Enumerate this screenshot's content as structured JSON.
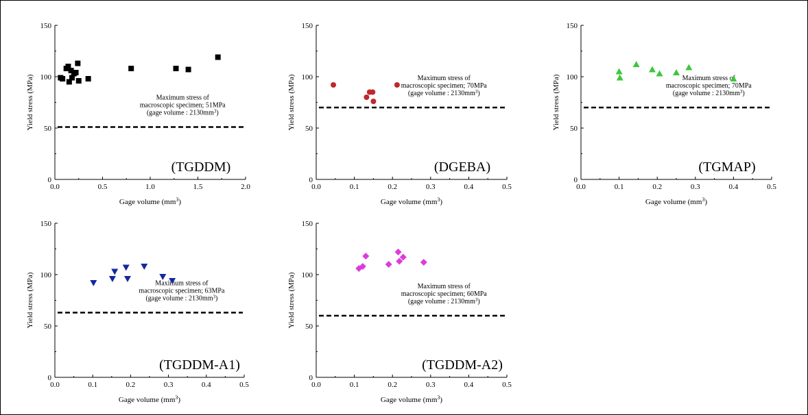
{
  "chart_data": [
    {
      "type": "scatter",
      "name_label": "(TGDDM)",
      "xlabel": "Gage volume (mm",
      "xlabel_sup": "3",
      "xlabel_end": ")",
      "ylabel": "Yield stress (MPa)",
      "xlim": [
        0,
        2.0
      ],
      "ylim": [
        0,
        150
      ],
      "xticks": [
        "0.0",
        "0.5",
        "1.0",
        "1.5",
        "2.0"
      ],
      "xtick_values": [
        0,
        0.5,
        1.0,
        1.5,
        2.0
      ],
      "yticks": [
        "0",
        "50",
        "100",
        "150"
      ],
      "ytick_values": [
        0,
        50,
        100,
        150
      ],
      "marker": "square",
      "color": "#000000",
      "reference_line": 51,
      "note_lines": [
        "Maximum stress of",
        "macroscopic specimen; 51MPa",
        "(gage volume : 2130mm",
        "3",
        ")"
      ],
      "points": [
        [
          0.06,
          99
        ],
        [
          0.08,
          98
        ],
        [
          0.12,
          108
        ],
        [
          0.14,
          110
        ],
        [
          0.15,
          95
        ],
        [
          0.17,
          106
        ],
        [
          0.18,
          99
        ],
        [
          0.2,
          103
        ],
        [
          0.22,
          104
        ],
        [
          0.24,
          113
        ],
        [
          0.25,
          96
        ],
        [
          0.35,
          98
        ],
        [
          0.8,
          108
        ],
        [
          1.27,
          108
        ],
        [
          1.4,
          107
        ],
        [
          1.71,
          119
        ]
      ]
    },
    {
      "type": "scatter",
      "name_label": "(DGEBA)",
      "xlabel": "Gage volume (mm",
      "xlabel_sup": "3",
      "xlabel_end": ")",
      "ylabel": "Yield stress (MPa)",
      "xlim": [
        0,
        0.5
      ],
      "ylim": [
        0,
        150
      ],
      "xticks": [
        "0.0",
        "0.1",
        "0.2",
        "0.3",
        "0.4",
        "0.5"
      ],
      "xtick_values": [
        0,
        0.1,
        0.2,
        0.3,
        0.4,
        0.5
      ],
      "yticks": [
        "0",
        "50",
        "100",
        "150"
      ],
      "ytick_values": [
        0,
        50,
        100,
        150
      ],
      "marker": "circle",
      "color": "#c0282d",
      "reference_line": 70,
      "note_lines": [
        "Maximum stress of",
        "macroscopic specimen; 70MPa",
        "(gage volume : 2130mm",
        "3",
        ")"
      ],
      "points": [
        [
          0.045,
          92
        ],
        [
          0.132,
          80
        ],
        [
          0.14,
          85
        ],
        [
          0.148,
          85
        ],
        [
          0.15,
          76
        ],
        [
          0.212,
          92
        ]
      ]
    },
    {
      "type": "scatter",
      "name_label": "(TGMAP)",
      "xlabel": "Gage volume (mm",
      "xlabel_sup": "3",
      "xlabel_end": ")",
      "ylabel": "Yield stress (MPa)",
      "xlim": [
        0,
        0.5
      ],
      "ylim": [
        0,
        150
      ],
      "xticks": [
        "0.0",
        "0.1",
        "0.2",
        "0.3",
        "0.4",
        "0.5"
      ],
      "xtick_values": [
        0,
        0.1,
        0.2,
        0.3,
        0.4,
        0.5
      ],
      "yticks": [
        "0",
        "50",
        "100",
        "150"
      ],
      "ytick_values": [
        0,
        50,
        100,
        150
      ],
      "marker": "triangle-up",
      "color": "#3cc83c",
      "reference_line": 70,
      "note_lines": [
        "Maximum stress of",
        "macroscopic specimen; 70MPa",
        "(gage volume : 2130mm",
        "3",
        ")"
      ],
      "points": [
        [
          0.1,
          105
        ],
        [
          0.102,
          99
        ],
        [
          0.145,
          112
        ],
        [
          0.187,
          107
        ],
        [
          0.206,
          103
        ],
        [
          0.25,
          104
        ],
        [
          0.283,
          109
        ],
        [
          0.4,
          98
        ]
      ]
    },
    {
      "type": "scatter",
      "name_label": "(TGDDM-A1)",
      "xlabel": "Gage volume (mm",
      "xlabel_sup": "3",
      "xlabel_end": ")",
      "ylabel": "Yield stress (MPa)",
      "xlim": [
        0,
        0.5
      ],
      "ylim": [
        0,
        150
      ],
      "xticks": [
        "0.0",
        "0.1",
        "0.2",
        "0.3",
        "0.4",
        "0.5"
      ],
      "xtick_values": [
        0,
        0.1,
        0.2,
        0.3,
        0.4,
        0.5
      ],
      "yticks": [
        "0",
        "50",
        "100",
        "150"
      ],
      "ytick_values": [
        0,
        50,
        100,
        150
      ],
      "marker": "triangle-down",
      "color": "#1428a0",
      "reference_line": 63,
      "note_lines": [
        "Maximum stress of",
        "macroscopic specimen; 63MPa",
        "(gage volume : 2130mm",
        "3",
        ")"
      ],
      "points": [
        [
          0.102,
          92
        ],
        [
          0.152,
          96
        ],
        [
          0.158,
          103
        ],
        [
          0.188,
          107
        ],
        [
          0.192,
          96
        ],
        [
          0.236,
          108
        ],
        [
          0.285,
          98
        ],
        [
          0.31,
          94
        ]
      ]
    },
    {
      "type": "scatter",
      "name_label": "(TGDDM-A2)",
      "xlabel": "Gage volume (mm",
      "xlabel_sup": "3",
      "xlabel_end": ")",
      "ylabel": "Yield stress (MPa)",
      "xlim": [
        0,
        0.5
      ],
      "ylim": [
        0,
        150
      ],
      "xticks": [
        "0.0",
        "0.1",
        "0.2",
        "0.3",
        "0.4",
        "0.5"
      ],
      "xtick_values": [
        0,
        0.1,
        0.2,
        0.3,
        0.4,
        0.5
      ],
      "yticks": [
        "0",
        "50",
        "100",
        "150"
      ],
      "ytick_values": [
        0,
        50,
        100,
        150
      ],
      "marker": "diamond",
      "color": "#dc3cdc",
      "reference_line": 60,
      "note_lines": [
        "Maximum stress of",
        "macroscopic specimen; 60MPa",
        "(gage volume : 2130mm",
        "3",
        ")"
      ],
      "points": [
        [
          0.112,
          106
        ],
        [
          0.122,
          108
        ],
        [
          0.13,
          118
        ],
        [
          0.19,
          110
        ],
        [
          0.215,
          122
        ],
        [
          0.218,
          113
        ],
        [
          0.228,
          117
        ],
        [
          0.282,
          112
        ]
      ]
    }
  ]
}
